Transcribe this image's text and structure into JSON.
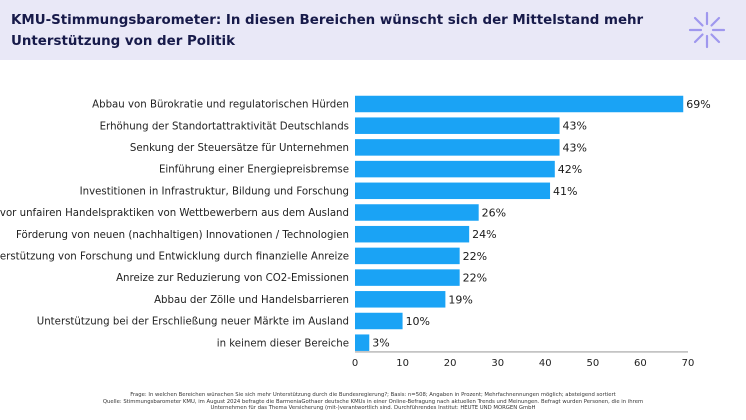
{
  "header": {
    "title_line1": "KMU-Stimmungsbarometer: In diesen Bereichen wünscht sich der Mittelstand mehr",
    "title_line2": "Unterstützung von der Politik"
  },
  "colors": {
    "header_bg": "#e9e8f7",
    "bar": "#1aa3f5",
    "logo": "#9f97ee",
    "title": "#171a4a"
  },
  "chart_data": {
    "type": "bar",
    "orientation": "horizontal",
    "categories": [
      "Abbau von Bürokratie und regulatorischen Hürden",
      "Erhöhung der Standortattraktivität Deutschlands",
      "Senkung der Steuersätze für Unternehmen",
      "Einführung einer Energiepreisbremse",
      "Investitionen in Infrastruktur, Bildung und Forschung",
      "Schutz vor unfairen Handelspraktiken von Wettbewerbern aus dem Ausland",
      "Förderung von neuen (nachhaltigen) Innovationen / Technologien",
      "Unterstützung von Forschung und Entwicklung durch finanzielle Anreize",
      "Anreize zur Reduzierung von CO2-Emissionen",
      "Abbau der Zölle und Handelsbarrieren",
      "Unterstützung bei der Erschließung neuer Märkte im Ausland",
      "in keinem dieser Bereiche"
    ],
    "values": [
      69,
      43,
      43,
      42,
      41,
      26,
      24,
      22,
      22,
      19,
      10,
      3
    ],
    "value_labels": [
      "69%",
      "43%",
      "43%",
      "42%",
      "41%",
      "26%",
      "24%",
      "22%",
      "22%",
      "19%",
      "10%",
      "3%"
    ],
    "xlim": [
      0,
      70
    ],
    "xticks": [
      0,
      10,
      20,
      30,
      40,
      50,
      60,
      70
    ],
    "xtick_labels": [
      "0",
      "10",
      "20",
      "30",
      "40",
      "50",
      "60",
      "70"
    ],
    "grid": false,
    "legend": "none",
    "title": "",
    "xlabel": "",
    "ylabel": ""
  },
  "footer": {
    "line1": "Frage: In welchen Bereichen wünschen Sie sich mehr Unterstützung durch die Bundesregierung?; Basis: n=508; Angaben in Prozent; Mehrfachnennungen möglich; absteigend sortiert",
    "line2": "Quelle: Stimmungsbarometer KMU, im August 2024 befragte die BarmeniaGothaer deutsche KMUs in einer Online-Befragung nach aktuellen Trends und Meinungen. Befragt wurden Personen, die in ihrem",
    "line3": "Unternehmen für das Thema Versicherung (mit-)verantwortlich sind. Durchführendes Institut: HEUTE UND MORGEN GmbH"
  }
}
